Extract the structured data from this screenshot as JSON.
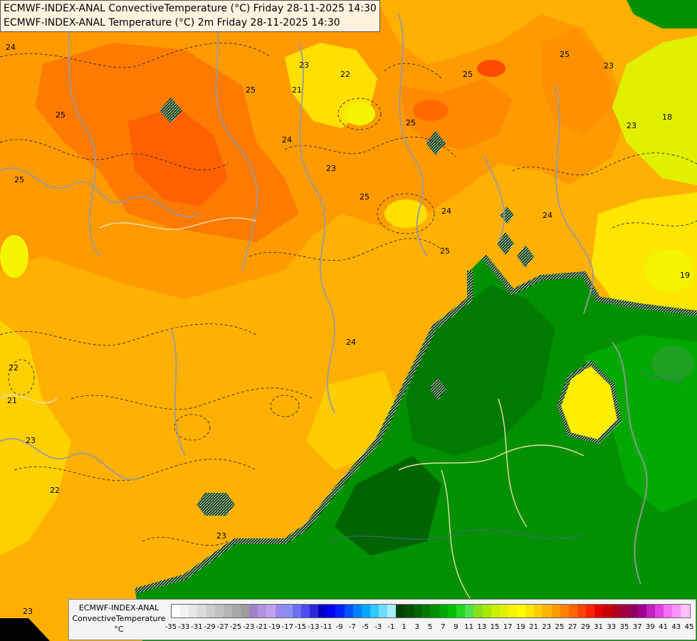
{
  "header": {
    "line1": "ECMWF-INDEX-ANAL ConvectiveTemperature (°C) Friday 28-11-2025 14:30",
    "line2": "ECMWF-INDEX-ANAL Temperature (°C) 2m Friday 28-11-2025 14:30"
  },
  "legend": {
    "title_line1": "ECMWF-INDEX-ANAL",
    "title_line2": "ConvectiveTemperature",
    "unit": "°C",
    "tick_labels": [
      "-35",
      "-33",
      "-31",
      "-29",
      "-27",
      "-25",
      "-23",
      "-21",
      "-19",
      "-17",
      "-15",
      "-13",
      "-11",
      "-9",
      "-7",
      "-5",
      "-3",
      "-1",
      "1",
      "3",
      "5",
      "7",
      "9",
      "11",
      "13",
      "15",
      "17",
      "19",
      "21",
      "23",
      "25",
      "27",
      "29",
      "31",
      "33",
      "35",
      "37",
      "39",
      "41",
      "43",
      "45"
    ],
    "colors": [
      "#ffffff",
      "#f2f2f2",
      "#e6e6e6",
      "#dadada",
      "#cdcdcd",
      "#c0c0c0",
      "#b4b4b4",
      "#a8a8a8",
      "#9c9c9c",
      "#a080c8",
      "#b090e0",
      "#c0a0f0",
      "#9a88ee",
      "#8a90f0",
      "#6f6ff2",
      "#4c4cf0",
      "#2a2ad0",
      "#0000c8",
      "#0000f0",
      "#0020ff",
      "#0050ff",
      "#0080ff",
      "#00a8ff",
      "#30c8ff",
      "#70dcff",
      "#a8ecff",
      "#004000",
      "#005000",
      "#006400",
      "#007a00",
      "#009000",
      "#00a800",
      "#00c000",
      "#20d820",
      "#50e050",
      "#88e018",
      "#a8e800",
      "#c8f000",
      "#e0f000",
      "#f4f400",
      "#ffff00",
      "#ffe600",
      "#ffcc00",
      "#ffb400",
      "#ff9a00",
      "#ff8000",
      "#ff6600",
      "#ff4400",
      "#ff2200",
      "#e60000",
      "#cc0000",
      "#b00020",
      "#a00040",
      "#900060",
      "#a00090",
      "#c020c0",
      "#e040e0",
      "#f070f0",
      "#ff90ff",
      "#ffc0ff"
    ]
  },
  "contour_labels": [
    "24",
    "25",
    "23",
    "22",
    "21",
    "25",
    "23",
    "25",
    "25",
    "24",
    "23",
    "25",
    "25",
    "24",
    "25",
    "21",
    "22",
    "24",
    "23",
    "22",
    "23",
    "23",
    "19",
    "18",
    "24",
    "25",
    "23"
  ]
}
